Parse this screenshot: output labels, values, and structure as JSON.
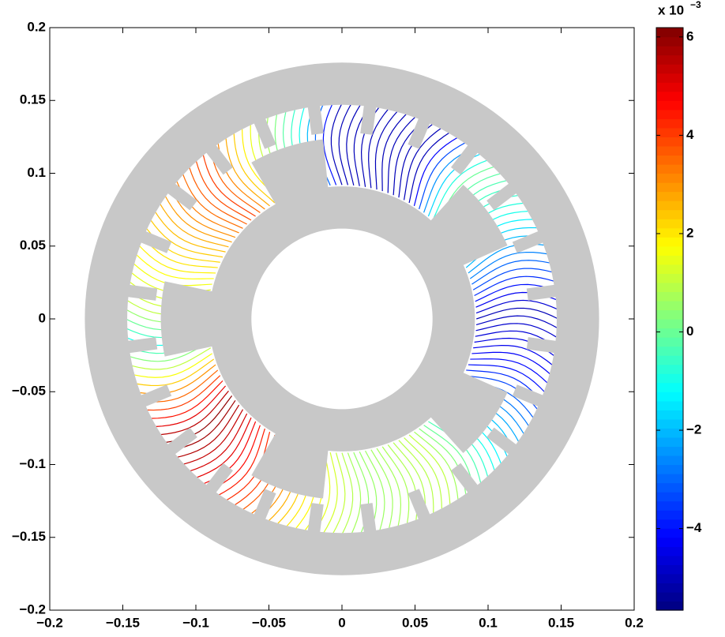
{
  "chart_data": {
    "type": "contour",
    "xlim": [
      -0.2,
      0.2
    ],
    "ylim": [
      -0.2,
      0.2
    ],
    "xticks": [
      {
        "value": -0.2,
        "label": "−0.2"
      },
      {
        "value": -0.15,
        "label": "−0.15"
      },
      {
        "value": -0.1,
        "label": "−0.1"
      },
      {
        "value": -0.05,
        "label": "−0.05"
      },
      0,
      0.05,
      0.1,
      0.15,
      0.2
    ],
    "yticks": [
      {
        "value": -0.2,
        "label": "−0.2"
      },
      {
        "value": -0.15,
        "label": "−0.15"
      },
      {
        "value": -0.1,
        "label": "−0.1"
      },
      {
        "value": -0.05,
        "label": "−0.05"
      },
      0,
      0.05,
      0.1,
      0.15,
      0.2
    ],
    "colormap": "jet",
    "clim": [
      -5.66,
      6.19
    ],
    "cticks": [
      {
        "value": -4,
        "label": "−4"
      },
      {
        "value": -2,
        "label": "−2"
      },
      0,
      2,
      4,
      6
    ],
    "colorbar_multiplier": "x 10",
    "colorbar_exponent": "−3",
    "geometry_color": "#c8c8c8"
  }
}
